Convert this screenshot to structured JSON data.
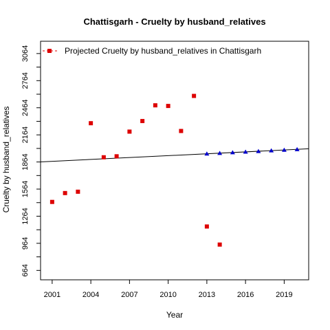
{
  "chart_data": {
    "type": "scatter",
    "title": "Chattisgarh  -  Cruelty by husband_relatives",
    "xlabel": "Year",
    "ylabel": "Cruelty by husband_relatives",
    "xlim": [
      2000.1,
      2020.9
    ],
    "ylim": [
      560,
      3200
    ],
    "x_ticks": [
      2001,
      2004,
      2007,
      2010,
      2013,
      2016,
      2019
    ],
    "y_ticks": [
      664,
      814,
      964,
      1114,
      1264,
      1414,
      1564,
      1714,
      1864,
      2014,
      2164,
      2314,
      2464,
      2614,
      2764,
      2914,
      3064
    ],
    "y_tick_labels": [
      "664",
      "",
      "964",
      "",
      "1264",
      "",
      "1564",
      "",
      "1864",
      "",
      "2164",
      "",
      "2464",
      "",
      "2764",
      "",
      "3064"
    ],
    "legend": {
      "position": "top-left",
      "label": "Projected  Cruelty by husband_relatives  in  Chattisgarh"
    },
    "series": [
      {
        "marker": "square",
        "color": "#dd0000",
        "x": [
          2001,
          2002,
          2003,
          2004,
          2005,
          2006,
          2007,
          2008,
          2009,
          2010,
          2011,
          2012,
          2013,
          2014
        ],
        "y": [
          1422,
          1520,
          1535,
          2293,
          1916,
          1927,
          2200,
          2317,
          2491,
          2484,
          2207,
          2595,
          1150,
          950
        ]
      },
      {
        "marker": "triangle",
        "color": "#0000cc",
        "x": [
          2013,
          2014,
          2015,
          2016,
          2017,
          2018,
          2019,
          2020
        ],
        "y": [
          1954,
          1961,
          1968,
          1975,
          1982,
          1989,
          1996,
          2003
        ]
      }
    ],
    "trend_line": {
      "color": "#000000",
      "x": [
        2000.1,
        2020.9
      ],
      "y": [
        1865,
        2010
      ]
    }
  }
}
